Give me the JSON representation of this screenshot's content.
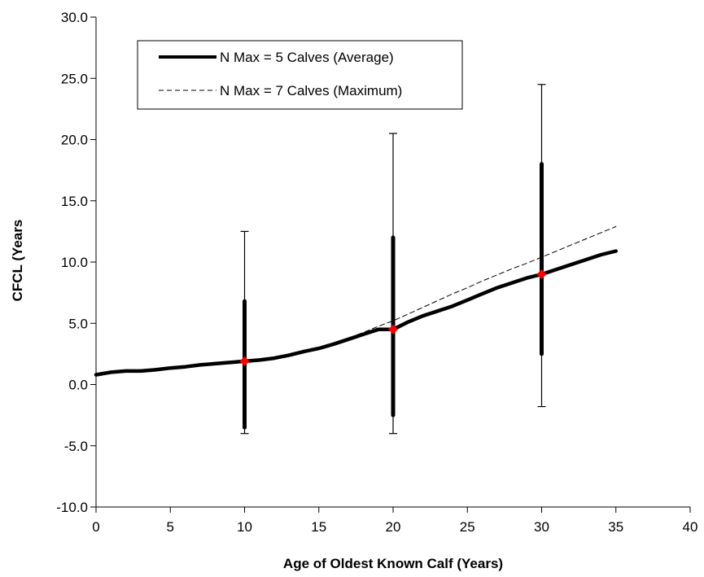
{
  "chart_data": {
    "type": "line",
    "title": "",
    "xlabel": "Age of Oldest Known Calf (Years)",
    "ylabel": "CFCL (Years",
    "xlim": [
      0,
      40
    ],
    "ylim": [
      -10,
      30
    ],
    "x_ticks": [
      "0",
      "5",
      "10",
      "15",
      "20",
      "25",
      "30",
      "35",
      "40"
    ],
    "y_ticks": [
      "-10.0",
      "-5.0",
      "0.0",
      "5.0",
      "10.0",
      "15.0",
      "20.0",
      "25.0",
      "30.0"
    ],
    "grid": false,
    "legend_position": "top-left",
    "series": [
      {
        "name": "N Max = 5 Calves (Average)",
        "style": "solid-thick",
        "color": "#000000",
        "x": [
          0,
          1,
          2,
          3,
          4,
          5,
          6,
          7,
          8,
          9,
          10,
          11,
          12,
          13,
          14,
          15,
          16,
          17,
          18,
          19,
          20,
          21,
          22,
          23,
          24,
          25,
          26,
          27,
          28,
          29,
          30,
          31,
          32,
          33,
          34,
          35
        ],
        "y": [
          0.8,
          1.0,
          1.1,
          1.1,
          1.2,
          1.35,
          1.45,
          1.6,
          1.7,
          1.8,
          1.9,
          2.0,
          2.15,
          2.4,
          2.7,
          2.95,
          3.3,
          3.7,
          4.1,
          4.5,
          4.5,
          5.1,
          5.6,
          6.0,
          6.4,
          6.9,
          7.4,
          7.9,
          8.3,
          8.7,
          9.0,
          9.4,
          9.8,
          10.2,
          10.6,
          10.9
        ]
      },
      {
        "name": "N Max = 7 Calves (Maximum)",
        "style": "dashed-thin",
        "color": "#000000",
        "x": [
          15,
          16,
          17,
          18,
          19,
          20,
          21,
          22,
          23,
          24,
          25,
          26,
          27,
          28,
          29,
          30,
          31,
          32,
          33,
          34,
          35
        ],
        "y": [
          2.95,
          3.35,
          3.8,
          4.25,
          4.75,
          5.2,
          5.75,
          6.3,
          6.85,
          7.4,
          7.9,
          8.45,
          8.95,
          9.45,
          9.9,
          10.4,
          10.9,
          11.4,
          11.9,
          12.4,
          12.9
        ]
      }
    ],
    "error_bars": [
      {
        "x": 10,
        "y": 1.9,
        "thick_low": -3.5,
        "thick_high": 6.8,
        "thin_low": -4.0,
        "thin_high": 12.5
      },
      {
        "x": 20,
        "y": 4.5,
        "thick_low": -2.5,
        "thick_high": 12.0,
        "thin_low": -4.0,
        "thin_high": 20.5
      },
      {
        "x": 30,
        "y": 9.0,
        "thick_low": 2.5,
        "thick_high": 18.0,
        "thin_low": -1.8,
        "thin_high": 24.5
      }
    ],
    "marker_color": "#ff0000"
  }
}
